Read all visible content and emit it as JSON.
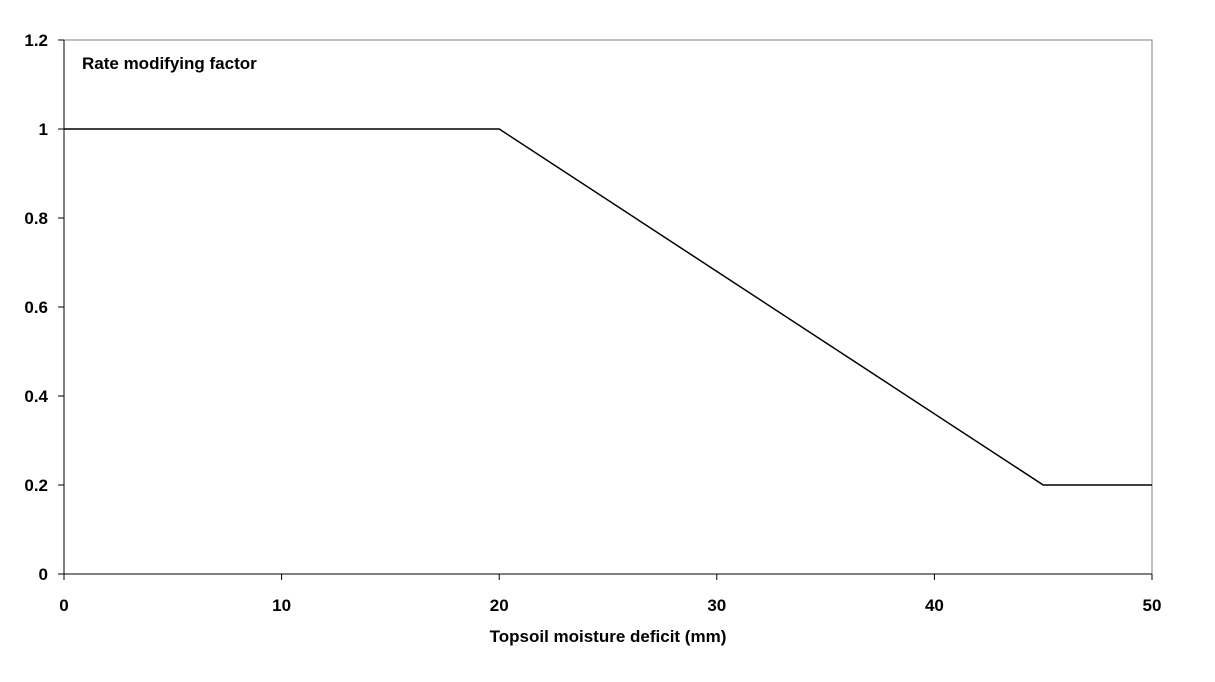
{
  "chart_data": {
    "type": "line",
    "title": "",
    "ylabel_inside": "Rate modifying factor",
    "xlabel": "Topsoil moisture deficit (mm)",
    "xlim": [
      0,
      50
    ],
    "ylim": [
      0,
      1.2
    ],
    "x_ticks": [
      0,
      10,
      20,
      30,
      40,
      50
    ],
    "x_tick_labels": [
      "0",
      "10",
      "20",
      "30",
      "40",
      "50"
    ],
    "y_ticks": [
      0,
      0.2,
      0.4,
      0.6,
      0.8,
      1,
      1.2
    ],
    "y_tick_labels": [
      "0",
      "0.2",
      "0.4",
      "0.6",
      "0.8",
      "1",
      "1.2"
    ],
    "grid": false,
    "series": [
      {
        "color": "#000000",
        "x": [
          0,
          20,
          45,
          50
        ],
        "y": [
          1,
          1,
          0.2,
          0.2
        ]
      }
    ]
  }
}
